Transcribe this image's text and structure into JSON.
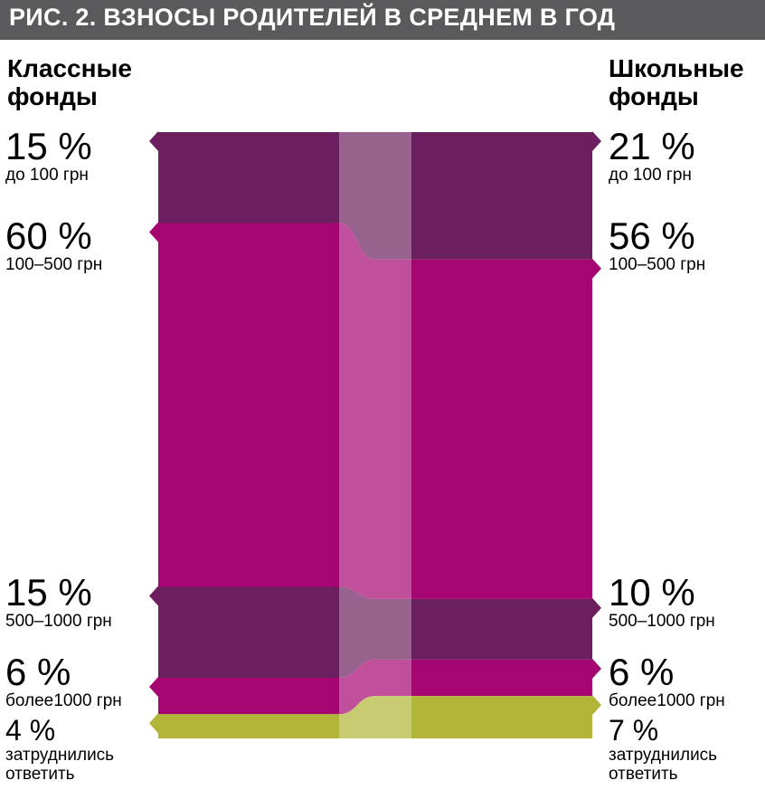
{
  "title": "РИС. 2. ВЗНОСЫ РОДИТЕЛЕЙ В СРЕДНЕМ В ГОД",
  "colors": {
    "dark": "#6b1f5e",
    "magenta": "#a50570",
    "olive": "#b2b537",
    "title_bg": "#5a5a5c"
  },
  "chart_data": {
    "type": "bar",
    "title": "РИС. 2. ВЗНОСЫ РОДИТЕЛЕЙ В СРЕДНЕМ В ГОД",
    "categories": [
      "Классные фонды",
      "Школьные фонды"
    ],
    "series": [
      {
        "name": "до 100 грн",
        "values": [
          15,
          21
        ],
        "color": "#6b1f5e"
      },
      {
        "name": "100–500 грн",
        "values": [
          60,
          56
        ],
        "color": "#a50570"
      },
      {
        "name": "500–1000 грн",
        "values": [
          15,
          10
        ],
        "color": "#6b1f5e"
      },
      {
        "name": "более1000 грн",
        "values": [
          6,
          6
        ],
        "color": "#a50570"
      },
      {
        "name": "затруднились ответить",
        "values": [
          4,
          7
        ],
        "color": "#b2b537"
      }
    ],
    "stacked": true,
    "unit": "%"
  },
  "left": {
    "heading": "Классные фонды",
    "labels": [
      {
        "pct": "15 %",
        "range": "до 100 грн"
      },
      {
        "pct": "60 %",
        "range": "100–500 грн"
      },
      {
        "pct": "15 %",
        "range": "500–1000 грн"
      },
      {
        "pct": "6 %",
        "range": "более1000 грн"
      },
      {
        "pct": "4 %",
        "range": "затруднились ответить"
      }
    ]
  },
  "right": {
    "heading": "Школьные фонды",
    "labels": [
      {
        "pct": "21 %",
        "range": "до 100 грн"
      },
      {
        "pct": "56 %",
        "range": "100–500 грн"
      },
      {
        "pct": "10 %",
        "range": "500–1000 грн"
      },
      {
        "pct": "6 %",
        "range": "более1000 грн"
      },
      {
        "pct": "7 %",
        "range": "затруднились ответить"
      }
    ]
  }
}
